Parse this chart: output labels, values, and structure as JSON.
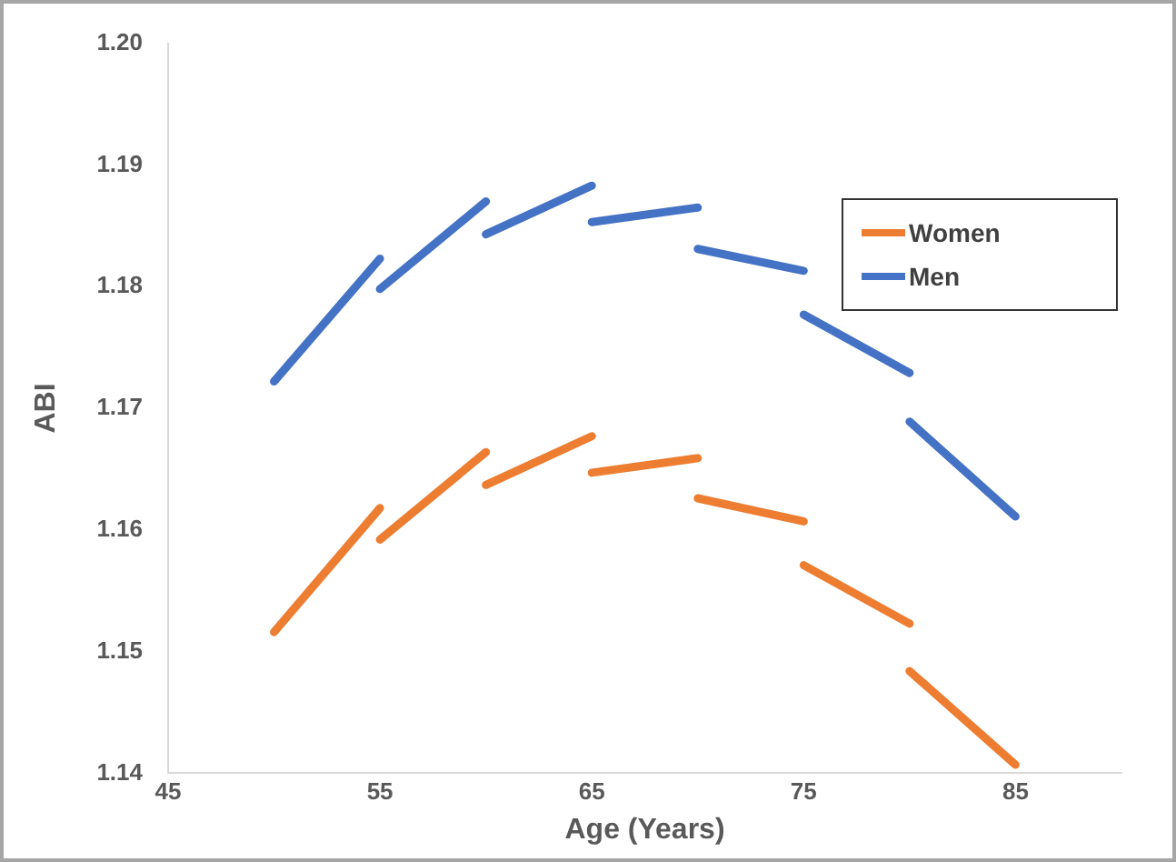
{
  "chart_data": {
    "type": "line",
    "xlabel": "Age (Years)",
    "ylabel": "ABI",
    "xlim": [
      45,
      90
    ],
    "xticks": [
      45,
      55,
      65,
      75,
      85
    ],
    "ylim": [
      1.14,
      1.2
    ],
    "yticks": [
      1.14,
      1.15,
      1.16,
      1.17,
      1.18,
      1.19,
      {
        "value": 1.2,
        "label": "1.20"
      }
    ],
    "grid": false,
    "legend": "top right",
    "marker": "none",
    "line_style": "solid",
    "series": [
      {
        "name": "Women",
        "color": "#ed7d31",
        "x": [
          50,
          55
        ],
        "values": [
          1.1516,
          1.1618
        ]
      },
      {
        "color": "#ed7d31",
        "x": [
          55,
          60
        ],
        "values": [
          1.1592,
          1.1664
        ]
      },
      {
        "color": "#ed7d31",
        "x": [
          60,
          65
        ],
        "values": [
          1.1637,
          1.1677
        ]
      },
      {
        "color": "#ed7d31",
        "x": [
          65,
          70
        ],
        "values": [
          1.1647,
          1.1659
        ]
      },
      {
        "color": "#ed7d31",
        "x": [
          70,
          75
        ],
        "values": [
          1.1626,
          1.1607
        ]
      },
      {
        "color": "#ed7d31",
        "x": [
          75,
          80
        ],
        "values": [
          1.1571,
          1.1523
        ]
      },
      {
        "color": "#ed7d31",
        "x": [
          80,
          85
        ],
        "values": [
          1.1484,
          1.1407
        ]
      },
      {
        "name": "Men",
        "color": "#4472c4",
        "x": [
          50,
          55
        ],
        "values": [
          1.1722,
          1.1823
        ]
      },
      {
        "color": "#4472c4",
        "x": [
          55,
          60
        ],
        "values": [
          1.1798,
          1.187
        ]
      },
      {
        "color": "#4472c4",
        "x": [
          60,
          65
        ],
        "values": [
          1.1843,
          1.1883
        ]
      },
      {
        "color": "#4472c4",
        "x": [
          65,
          70
        ],
        "values": [
          1.1853,
          1.1865
        ]
      },
      {
        "color": "#4472c4",
        "x": [
          70,
          75
        ],
        "values": [
          1.1831,
          1.1813
        ]
      },
      {
        "color": "#4472c4",
        "x": [
          75,
          80
        ],
        "values": [
          1.1777,
          1.1729
        ]
      },
      {
        "color": "#4472c4",
        "x": [
          80,
          85
        ],
        "values": [
          1.1689,
          1.1611
        ]
      }
    ]
  }
}
